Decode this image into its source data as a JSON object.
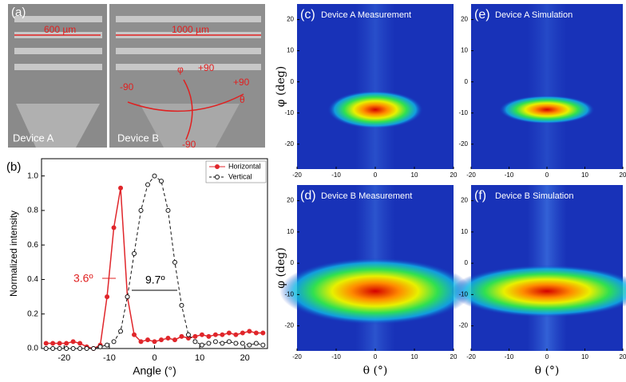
{
  "image_a": {
    "panel_label": "(a)",
    "labels": [
      "600 µm",
      "1000 µm",
      "φ",
      "+90",
      "-90",
      "+90",
      "θ",
      "-90",
      "Device A",
      "Device B"
    ]
  },
  "chart_data": [
    {
      "type": "line",
      "panel_label": "(b)",
      "xlabel": "Angle (°)",
      "ylabel": "Normalized intensity",
      "x": [
        -24,
        -22.5,
        -21,
        -19.5,
        -18,
        -16.5,
        -15,
        -13.5,
        -12,
        -10.5,
        -9,
        -7.5,
        -6,
        -4.5,
        -3,
        -1.5,
        0,
        1.5,
        3,
        4.5,
        6,
        7.5,
        9,
        10.5,
        12,
        13.5,
        15,
        16.5,
        18,
        19.5,
        21,
        22.5,
        24
      ],
      "series": [
        {
          "name": "Horizontal",
          "color": "#e0262b",
          "values": [
            0.03,
            0.03,
            0.03,
            0.03,
            0.04,
            0.03,
            0.01,
            0.0,
            0.02,
            0.3,
            0.7,
            0.93,
            0.3,
            0.08,
            0.04,
            0.05,
            0.04,
            0.05,
            0.06,
            0.05,
            0.07,
            0.06,
            0.07,
            0.08,
            0.07,
            0.08,
            0.08,
            0.09,
            0.08,
            0.09,
            0.1,
            0.09,
            0.09
          ]
        },
        {
          "name": "Vertical",
          "color": "#111111",
          "values": [
            0,
            0,
            0,
            0,
            0,
            0,
            0,
            0,
            0.01,
            0.02,
            0.04,
            0.1,
            0.3,
            0.55,
            0.8,
            0.95,
            1.0,
            0.97,
            0.8,
            0.5,
            0.25,
            0.08,
            0.04,
            0.02,
            0.03,
            0.04,
            0.03,
            0.04,
            0.03,
            0.03,
            0.02,
            0.03,
            0.02
          ]
        }
      ],
      "xlim": [
        -25,
        25
      ],
      "xticks": [
        -20,
        -10,
        0,
        10,
        20
      ],
      "ylim": [
        0,
        1.1
      ],
      "yticks": [
        {
          "value": 0,
          "label": "0.0"
        },
        {
          "value": 0.2,
          "label": "0.2"
        },
        {
          "value": 0.4,
          "label": "0.4"
        },
        {
          "value": 0.6,
          "label": "0.6"
        },
        {
          "value": 0.8,
          "label": "0.8"
        },
        {
          "value": 1.0,
          "label": "1.0"
        }
      ],
      "annotations": [
        "3.6º",
        "9.7º"
      ],
      "legend": "upper right"
    },
    {
      "type": "heatmap",
      "panel_label": "(c)",
      "title": "Device A Measurement",
      "ylabel": "φ (deg)",
      "xlim": [
        -20,
        20
      ],
      "xticks": [
        -20,
        -10,
        0,
        10,
        20
      ],
      "ylim": [
        -28,
        25
      ],
      "yticks": [
        20,
        10,
        0,
        -10,
        -20
      ]
    },
    {
      "type": "heatmap",
      "panel_label": "(e)",
      "title": "Device A Simulation",
      "xlim": [
        -20,
        20
      ],
      "xticks": [
        -20,
        -10,
        0,
        10,
        20
      ],
      "ylim": [
        -28,
        25
      ],
      "yticks": [
        20,
        10,
        0,
        -10,
        -20
      ]
    },
    {
      "type": "heatmap",
      "panel_label": "(d)",
      "title": "Device B Measurement",
      "ylabel": "φ (deg)",
      "xlabel": "θ (°)",
      "xlim": [
        -20,
        20
      ],
      "xticks": [
        -20,
        -10,
        0,
        10,
        20
      ],
      "ylim": [
        -28,
        25
      ],
      "yticks": [
        20,
        10,
        0,
        -10,
        -20
      ]
    },
    {
      "type": "heatmap",
      "panel_label": "(f)",
      "title": "Device B Simulation",
      "xlabel": "θ (°)",
      "xlim": [
        -20,
        20
      ],
      "xticks": [
        -20,
        -10,
        0,
        10,
        20
      ],
      "ylim": [
        -28,
        25
      ],
      "yticks": [
        20,
        10,
        0,
        -10,
        -20
      ]
    }
  ]
}
